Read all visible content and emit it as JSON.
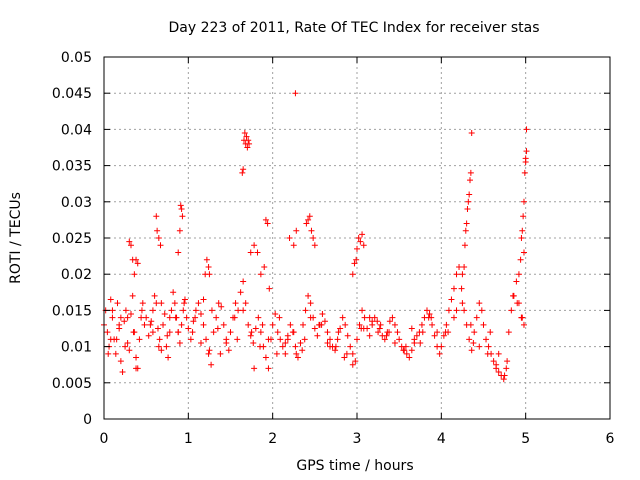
{
  "chart_data": {
    "type": "scatter",
    "title": "Day 223 of 2011, Rate Of TEC Index for receiver stas",
    "xlabel": "GPS time / hours",
    "ylabel": "ROTI / TECUs",
    "xlim": [
      0,
      6
    ],
    "ylim": [
      0,
      0.05
    ],
    "grid": true,
    "marker": "+",
    "colors": {
      "points": "#ff0000",
      "grid": "#a0a0a0",
      "axis": "#000000"
    },
    "x_ticks": [
      {
        "value": 0,
        "label": "0"
      },
      {
        "value": 1,
        "label": "1"
      },
      {
        "value": 2,
        "label": "2"
      },
      {
        "value": 3,
        "label": "3"
      },
      {
        "value": 4,
        "label": "4"
      },
      {
        "value": 5,
        "label": "5"
      },
      {
        "value": 6,
        "label": "6"
      }
    ],
    "y_ticks": [
      {
        "value": 0,
        "label": "0"
      },
      {
        "value": 0.005,
        "label": "0.005"
      },
      {
        "value": 0.01,
        "label": "0.01"
      },
      {
        "value": 0.015,
        "label": "0.015"
      },
      {
        "value": 0.02,
        "label": "0.02"
      },
      {
        "value": 0.025,
        "label": "0.025"
      },
      {
        "value": 0.03,
        "label": "0.03"
      },
      {
        "value": 0.035,
        "label": "0.035"
      },
      {
        "value": 0.04,
        "label": "0.04"
      },
      {
        "value": 0.045,
        "label": "0.045"
      },
      {
        "value": 0.05,
        "label": "0.05"
      }
    ],
    "series": [
      {
        "name": "ROTI",
        "x": [
          0.0,
          0.02,
          0.04,
          0.06,
          0.08,
          0.1,
          0.12,
          0.14,
          0.16,
          0.18,
          0.2,
          0.22,
          0.24,
          0.26,
          0.28,
          0.3,
          0.32,
          0.34,
          0.36,
          0.38,
          0.4,
          0.42,
          0.44,
          0.46,
          0.48,
          0.5,
          0.53,
          0.56,
          0.58,
          0.6,
          0.62,
          0.64,
          0.66,
          0.68,
          0.7,
          0.72,
          0.74,
          0.76,
          0.78,
          0.8,
          0.82,
          0.84,
          0.86,
          0.88,
          0.9,
          0.92,
          0.94,
          0.96,
          0.98,
          1.0,
          1.03,
          1.06,
          1.09,
          1.12,
          1.15,
          1.18,
          1.21,
          1.24,
          1.27,
          1.3,
          1.33,
          1.36,
          1.39,
          1.42,
          1.45,
          1.48,
          1.5,
          1.53,
          1.56,
          1.59,
          1.62,
          1.65,
          1.68,
          1.71,
          1.74,
          1.77,
          1.8,
          1.83,
          1.86,
          1.89,
          1.92,
          1.95,
          1.98,
          2.0,
          2.03,
          2.06,
          2.09,
          2.12,
          2.15,
          2.18,
          2.21,
          2.24,
          2.27,
          2.3,
          2.33,
          2.36,
          2.39,
          2.42,
          2.45,
          2.48,
          2.5,
          2.53,
          2.56,
          2.59,
          2.62,
          2.65,
          2.68,
          2.71,
          2.74,
          2.77,
          2.8,
          2.83,
          2.86,
          2.89,
          2.92,
          2.95,
          2.98,
          3.0,
          3.03,
          3.06,
          3.09,
          3.12,
          3.15,
          3.18,
          3.21,
          3.24,
          3.27,
          3.3,
          3.33,
          3.36,
          3.39,
          3.42,
          3.45,
          3.48,
          3.5,
          3.53,
          3.56,
          3.59,
          3.62,
          3.65,
          3.68,
          3.71,
          3.74,
          3.77,
          3.8,
          3.83,
          3.86,
          3.89,
          3.92,
          3.95,
          3.98,
          4.0,
          4.03,
          4.06,
          4.09,
          4.12,
          4.15,
          4.18,
          4.21,
          4.24,
          4.27,
          4.3,
          4.33,
          4.36,
          4.39,
          4.42,
          4.45,
          4.48,
          4.5,
          4.53,
          4.56,
          4.59,
          4.62,
          4.65,
          4.68,
          4.71,
          4.74,
          4.77,
          4.8,
          4.83,
          4.86,
          4.89,
          4.92,
          4.95,
          4.98,
          0.05,
          0.1,
          0.15,
          0.2,
          0.25,
          0.35,
          0.45,
          0.55,
          0.65,
          0.75,
          0.85,
          0.95,
          1.05,
          1.15,
          1.25,
          1.35,
          1.45,
          1.55,
          1.65,
          1.75,
          1.85,
          1.95,
          2.05,
          2.15,
          2.25,
          2.35,
          2.45,
          2.55,
          2.65,
          2.75,
          2.85,
          2.95,
          3.05,
          3.15,
          3.25,
          3.35,
          3.45,
          3.55,
          3.65,
          3.75,
          3.85,
          3.95,
          4.05,
          4.15,
          4.25,
          4.35,
          4.45,
          4.55,
          4.65,
          4.75,
          4.85,
          4.95,
          0.08,
          0.18,
          0.28,
          0.38,
          0.58,
          0.68,
          0.78,
          0.88,
          1.08,
          1.18,
          1.28,
          1.38,
          1.58,
          1.78,
          1.88,
          2.08,
          2.18,
          2.28,
          2.38,
          2.58,
          2.68,
          2.78,
          2.88,
          3.08,
          3.18,
          3.28,
          3.38,
          3.58,
          3.68,
          3.78,
          3.88,
          4.08,
          4.18,
          4.38,
          4.58,
          4.68,
          4.78,
          0.62,
          0.63,
          0.65,
          0.67,
          0.88,
          0.9,
          0.91,
          0.92,
          0.93,
          1.2,
          1.22,
          1.24,
          1.25,
          1.64,
          1.65,
          1.66,
          1.67,
          1.68,
          1.69,
          1.7,
          1.71,
          1.72,
          1.74,
          1.78,
          1.82,
          1.86,
          1.9,
          1.92,
          1.94,
          1.96,
          2.2,
          2.25,
          2.28,
          2.4,
          2.42,
          2.44,
          2.46,
          2.48,
          2.5,
          2.95,
          2.97,
          2.99,
          3.0,
          3.02,
          3.04,
          3.06,
          3.08,
          4.25,
          4.27,
          4.28,
          4.29,
          4.3,
          4.31,
          4.32,
          4.33,
          4.34,
          4.35,
          4.36,
          4.9,
          4.92,
          4.94,
          4.95,
          4.96,
          4.97,
          4.98,
          4.99,
          5.0,
          5.0,
          5.01,
          5.01,
          4.98,
          4.96,
          2.27,
          0.3,
          0.32,
          0.34,
          0.36,
          0.38,
          0.4
        ],
        "y": [
          0.013,
          0.015,
          0.012,
          0.01,
          0.0165,
          0.014,
          0.011,
          0.009,
          0.016,
          0.0125,
          0.008,
          0.0065,
          0.0135,
          0.015,
          0.0105,
          0.0095,
          0.0145,
          0.017,
          0.012,
          0.0085,
          0.007,
          0.011,
          0.014,
          0.016,
          0.013,
          0.014,
          0.0115,
          0.0135,
          0.015,
          0.017,
          0.016,
          0.0125,
          0.011,
          0.0095,
          0.013,
          0.0145,
          0.01,
          0.0085,
          0.012,
          0.015,
          0.0175,
          0.016,
          0.014,
          0.012,
          0.0105,
          0.013,
          0.015,
          0.0165,
          0.014,
          0.0125,
          0.011,
          0.0135,
          0.015,
          0.016,
          0.0145,
          0.013,
          0.011,
          0.009,
          0.0075,
          0.012,
          0.014,
          0.016,
          0.0155,
          0.013,
          0.0105,
          0.0095,
          0.012,
          0.014,
          0.016,
          0.015,
          0.0175,
          0.019,
          0.016,
          0.013,
          0.0115,
          0.0105,
          0.0125,
          0.014,
          0.012,
          0.01,
          0.0085,
          0.007,
          0.011,
          0.013,
          0.0145,
          0.012,
          0.011,
          0.01,
          0.009,
          0.0115,
          0.013,
          0.012,
          0.01,
          0.0085,
          0.0105,
          0.013,
          0.015,
          0.017,
          0.016,
          0.014,
          0.0125,
          0.0115,
          0.013,
          0.0145,
          0.0135,
          0.012,
          0.011,
          0.01,
          0.0095,
          0.011,
          0.0125,
          0.014,
          0.013,
          0.0115,
          0.01,
          0.009,
          0.008,
          0.011,
          0.013,
          0.015,
          0.014,
          0.0125,
          0.0115,
          0.013,
          0.014,
          0.0135,
          0.0125,
          0.0115,
          0.011,
          0.012,
          0.0135,
          0.014,
          0.013,
          0.012,
          0.011,
          0.01,
          0.0095,
          0.009,
          0.0085,
          0.0095,
          0.0105,
          0.0115,
          0.012,
          0.013,
          0.014,
          0.015,
          0.0145,
          0.013,
          0.0115,
          0.01,
          0.009,
          0.01,
          0.0115,
          0.013,
          0.015,
          0.0165,
          0.018,
          0.02,
          0.021,
          0.018,
          0.015,
          0.013,
          0.011,
          0.0095,
          0.012,
          0.014,
          0.016,
          0.015,
          0.013,
          0.011,
          0.01,
          0.009,
          0.008,
          0.007,
          0.0065,
          0.006,
          0.0055,
          0.007,
          0.012,
          0.015,
          0.017,
          0.019,
          0.016,
          0.014,
          0.013,
          0.009,
          0.015,
          0.011,
          0.014,
          0.01,
          0.012,
          0.015,
          0.013,
          0.01,
          0.0115,
          0.014,
          0.016,
          0.012,
          0.0105,
          0.0095,
          0.0125,
          0.011,
          0.014,
          0.015,
          0.012,
          0.01,
          0.011,
          0.009,
          0.0105,
          0.012,
          0.0095,
          0.014,
          0.013,
          0.0105,
          0.01,
          0.0085,
          0.0075,
          0.0125,
          0.014,
          0.012,
          0.0115,
          0.0105,
          0.0095,
          0.0125,
          0.0105,
          0.014,
          0.012,
          0.012,
          0.014,
          0.016,
          0.013,
          0.01,
          0.009,
          0.0075,
          0.006,
          0.017,
          0.014,
          0.011,
          0.013,
          0.014,
          0.007,
          0.012,
          0.016,
          0.014,
          0.012,
          0.014,
          0.0165,
          0.015,
          0.009,
          0.011,
          0.007,
          0.013,
          0.014,
          0.011,
          0.009,
          0.011,
          0.013,
          0.01,
          0.012,
          0.009,
          0.0125,
          0.0135,
          0.013,
          0.012,
          0.01,
          0.011,
          0.012,
          0.014,
          0.012,
          0.015,
          0.0105,
          0.012,
          0.009,
          0.008,
          0.028,
          0.026,
          0.025,
          0.024,
          0.023,
          0.026,
          0.0295,
          0.029,
          0.028,
          0.02,
          0.022,
          0.021,
          0.02,
          0.034,
          0.0345,
          0.0385,
          0.0395,
          0.038,
          0.039,
          0.0375,
          0.0385,
          0.038,
          0.023,
          0.024,
          0.023,
          0.02,
          0.021,
          0.0275,
          0.027,
          0.018,
          0.025,
          0.024,
          0.026,
          0.027,
          0.0275,
          0.028,
          0.026,
          0.025,
          0.024,
          0.02,
          0.0215,
          0.022,
          0.0235,
          0.025,
          0.0245,
          0.0255,
          0.024,
          0.02,
          0.021,
          0.024,
          0.026,
          0.027,
          0.029,
          0.03,
          0.031,
          0.033,
          0.034,
          0.0395,
          0.016,
          0.02,
          0.022,
          0.025,
          0.026,
          0.028,
          0.03,
          0.034,
          0.0355,
          0.036,
          0.037,
          0.04,
          0.023,
          0.014,
          0.045,
          0.0245,
          0.024,
          0.022,
          0.02,
          0.022,
          0.0215
        ]
      }
    ]
  }
}
